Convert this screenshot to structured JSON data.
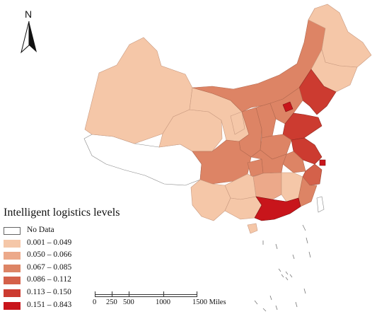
{
  "north_arrow": {
    "label": "N",
    "icon": "north-arrow-icon"
  },
  "legend": {
    "title": "Intelligent logistics levels",
    "items": [
      {
        "label": "No Data",
        "color": "#ffffff"
      },
      {
        "label": "0.001 – 0.049",
        "color": "#f5c7a8"
      },
      {
        "label": "0.050 – 0.066",
        "color": "#eca98a"
      },
      {
        "label": "0.067 – 0.085",
        "color": "#dd8465"
      },
      {
        "label": "0.086 – 0.112",
        "color": "#d4614a"
      },
      {
        "label": "0.113 – 0.150",
        "color": "#cc3b30"
      },
      {
        "label": "0.151 – 0.843",
        "color": "#c8151b"
      }
    ]
  },
  "scale_bar": {
    "ticks": [
      "0",
      "250",
      "500",
      "1000",
      "1500 Miles"
    ]
  }
}
